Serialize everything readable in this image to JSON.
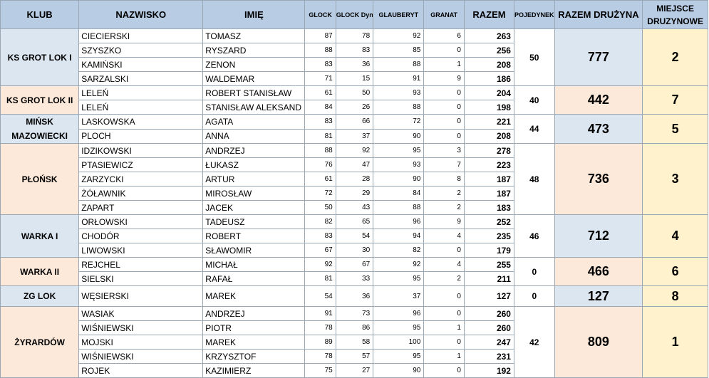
{
  "headers": {
    "club": "KLUB",
    "surname": "NAZWISKO",
    "name": "IMIĘ",
    "glock": "GLOCK",
    "glock_dyn": "GLOCK Dyn.",
    "glauberyt": "GLAUBERYT",
    "granat": "GRANAT",
    "total": "RAZEM",
    "duel": "POJEDYNEK",
    "team_total": "RAZEM DRUŻYNA",
    "team_place_line1": "MIEJSCE",
    "team_place_line2": "DRUZYNOWE"
  },
  "teams": [
    {
      "club": "KS GROT LOK I",
      "duel": "50",
      "team_total": "777",
      "place": "2",
      "players": [
        {
          "surname": "CIECIERSKI",
          "name": "TOMASZ",
          "glock": "87",
          "glock_dyn": "78",
          "glauberyt": "92",
          "granat": "6",
          "total": "263"
        },
        {
          "surname": "SZYSZKO",
          "name": "RYSZARD",
          "glock": "88",
          "glock_dyn": "83",
          "glauberyt": "85",
          "granat": "0",
          "total": "256"
        },
        {
          "surname": "KAMIŃSKI",
          "name": "ZENON",
          "glock": "83",
          "glock_dyn": "36",
          "glauberyt": "88",
          "granat": "1",
          "total": "208"
        },
        {
          "surname": "SARZALSKI",
          "name": "WALDEMAR",
          "glock": "71",
          "glock_dyn": "15",
          "glauberyt": "91",
          "granat": "9",
          "total": "186"
        }
      ]
    },
    {
      "club": "KS GROT LOK II",
      "duel": "40",
      "team_total": "442",
      "place": "7",
      "players": [
        {
          "surname": "LELEŃ",
          "name": "ROBERT STANISŁAW",
          "glock": "61",
          "glock_dyn": "50",
          "glauberyt": "93",
          "granat": "0",
          "total": "204"
        },
        {
          "surname": "LELEŃ",
          "name": "STANISŁAW ALEKSAND",
          "glock": "84",
          "glock_dyn": "26",
          "glauberyt": "88",
          "granat": "0",
          "total": "198"
        }
      ]
    },
    {
      "club": "MIŃSK MAZOWIECKI",
      "duel": "44",
      "team_total": "473",
      "place": "5",
      "players": [
        {
          "surname": "LASKOWSKA",
          "name": "AGATA",
          "glock": "83",
          "glock_dyn": "66",
          "glauberyt": "72",
          "granat": "0",
          "total": "221"
        },
        {
          "surname": "PLOCH",
          "name": "ANNA",
          "glock": "81",
          "glock_dyn": "37",
          "glauberyt": "90",
          "granat": "0",
          "total": "208"
        }
      ]
    },
    {
      "club": "PŁOŃSK",
      "duel": "48",
      "team_total": "736",
      "place": "3",
      "players": [
        {
          "surname": "IDZIKOWSKI",
          "name": "ANDRZEJ",
          "glock": "88",
          "glock_dyn": "92",
          "glauberyt": "95",
          "granat": "3",
          "total": "278"
        },
        {
          "surname": "PTASIEWICZ",
          "name": "ŁUKASZ",
          "glock": "76",
          "glock_dyn": "47",
          "glauberyt": "93",
          "granat": "7",
          "total": "223"
        },
        {
          "surname": "ZARZYCKI",
          "name": "ARTUR",
          "glock": "61",
          "glock_dyn": "28",
          "glauberyt": "90",
          "granat": "8",
          "total": "187"
        },
        {
          "surname": "ŻÓŁAWNIK",
          "name": "MIROSŁAW",
          "glock": "72",
          "glock_dyn": "29",
          "glauberyt": "84",
          "granat": "2",
          "total": "187"
        },
        {
          "surname": "ZAPART",
          "name": "JACEK",
          "glock": "50",
          "glock_dyn": "43",
          "glauberyt": "88",
          "granat": "2",
          "total": "183"
        }
      ]
    },
    {
      "club": "WARKA I",
      "duel": "46",
      "team_total": "712",
      "place": "4",
      "players": [
        {
          "surname": "ORŁOWSKI",
          "name": "TADEUSZ",
          "glock": "82",
          "glock_dyn": "65",
          "glauberyt": "96",
          "granat": "9",
          "total": "252"
        },
        {
          "surname": "CHODÓR",
          "name": "ROBERT",
          "glock": "83",
          "glock_dyn": "54",
          "glauberyt": "94",
          "granat": "4",
          "total": "235"
        },
        {
          "surname": "LIWOWSKI",
          "name": "SŁAWOMIR",
          "glock": "67",
          "glock_dyn": "30",
          "glauberyt": "82",
          "granat": "0",
          "total": "179"
        }
      ]
    },
    {
      "club": "WARKA II",
      "duel": "0",
      "team_total": "466",
      "place": "6",
      "players": [
        {
          "surname": "REJCHEL",
          "name": "MICHAŁ",
          "glock": "92",
          "glock_dyn": "67",
          "glauberyt": "92",
          "granat": "4",
          "total": "255"
        },
        {
          "surname": "SIELSKI",
          "name": "RAFAŁ",
          "glock": "81",
          "glock_dyn": "33",
          "glauberyt": "95",
          "granat": "2",
          "total": "211"
        }
      ]
    },
    {
      "club": "ZG LOK",
      "duel": "0",
      "team_total": "127",
      "place": "8",
      "players": [
        {
          "surname": "WĘSIERSKI",
          "name": "MAREK",
          "glock": "54",
          "glock_dyn": "36",
          "glauberyt": "37",
          "granat": "0",
          "total": "127"
        }
      ]
    },
    {
      "club": "ŻYRARDÓW",
      "duel": "42",
      "team_total": "809",
      "place": "1",
      "players": [
        {
          "surname": "WASIAK",
          "name": "ANDRZEJ",
          "glock": "91",
          "glock_dyn": "73",
          "glauberyt": "96",
          "granat": "0",
          "total": "260"
        },
        {
          "surname": "WIŚNIEWSKI",
          "name": "PIOTR",
          "glock": "78",
          "glock_dyn": "86",
          "glauberyt": "95",
          "granat": "1",
          "total": "260"
        },
        {
          "surname": "MOJSKI",
          "name": "MAREK",
          "glock": "89",
          "glock_dyn": "58",
          "glauberyt": "100",
          "granat": "0",
          "total": "247"
        },
        {
          "surname": "WIŚNIEWSKI",
          "name": "KRZYSZTOF",
          "glock": "78",
          "glock_dyn": "57",
          "glauberyt": "95",
          "granat": "1",
          "total": "231"
        },
        {
          "surname": "ROJEK",
          "name": "KAZIMIERZ",
          "glock": "75",
          "glock_dyn": "27",
          "glauberyt": "90",
          "granat": "0",
          "total": "192"
        }
      ]
    }
  ],
  "colors": {
    "header_bg": "#b8cce4",
    "row_blue": "#dce6f1",
    "row_pink": "#fde9d9",
    "place_bg": "#fff2cc",
    "border": "#9aa7b5"
  }
}
